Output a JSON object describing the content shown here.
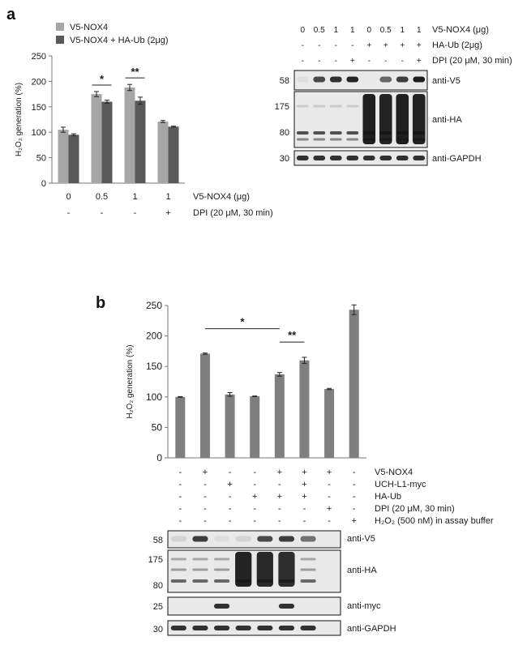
{
  "figure": {
    "panel_a": {
      "label": "a",
      "chart": {
        "legend": [
          "V5-NOX4",
          "V5-NOX4 + HA-Ub (2μg)"
        ],
        "ylabel": "H₂O₂ generation (%)",
        "rows": [
          {
            "label": "V5-NOX4 (μg)",
            "values": [
              "0",
              "0.5",
              "1",
              "1"
            ]
          },
          {
            "label": "DPI (20 μM, 30 min)",
            "values": [
              "-",
              "-",
              "-",
              "+"
            ]
          }
        ],
        "significance": [
          {
            "marker": "*",
            "group": 1
          },
          {
            "marker": "**",
            "group": 2
          }
        ]
      },
      "blot": {
        "rows": [
          {
            "label": "V5-NOX4 (μg)",
            "values": [
              "0",
              "0.5",
              "1",
              "1",
              "0",
              "0.5",
              "1",
              "1"
            ]
          },
          {
            "label": "HA-Ub (2μg)",
            "values": [
              "-",
              "-",
              "-",
              "-",
              "+",
              "+",
              "+",
              "+"
            ]
          },
          {
            "label": "DPI (20 μM, 30 min)",
            "values": [
              "-",
              "-",
              "-",
              "+",
              "-",
              "-",
              "-",
              "+"
            ]
          }
        ],
        "strips": [
          {
            "antibody": "anti-V5",
            "markers": [
              "58"
            ]
          },
          {
            "antibody": "anti-HA",
            "markers": [
              "175",
              "80"
            ]
          },
          {
            "antibody": "anti-GAPDH",
            "markers": [
              "30"
            ]
          }
        ]
      }
    },
    "panel_b": {
      "label": "b",
      "chart": {
        "ylabel": "H₂O₂ generation (%)",
        "significance": [
          {
            "marker": "*",
            "from": 1,
            "to": 4
          },
          {
            "marker": "**",
            "from": 4,
            "to": 5
          }
        ]
      },
      "treatments": [
        {
          "label": "V5-NOX4",
          "values": [
            "-",
            "+",
            "-",
            "-",
            "+",
            "+",
            "+",
            "-"
          ]
        },
        {
          "label": "UCH-L1-myc",
          "values": [
            "-",
            "-",
            "+",
            "-",
            "-",
            "+",
            "-",
            "-"
          ]
        },
        {
          "label": "HA-Ub",
          "values": [
            "-",
            "-",
            "-",
            "+",
            "+",
            "+",
            "-",
            "-"
          ]
        },
        {
          "label": "DPI (20 μM, 30 min)",
          "values": [
            "-",
            "-",
            "-",
            "-",
            "-",
            "-",
            "+",
            "-"
          ]
        },
        {
          "label": "H₂O₂ (500 nM) in assay buffer",
          "values": [
            "-",
            "-",
            "-",
            "-",
            "-",
            "-",
            "-",
            "+"
          ]
        }
      ],
      "blot": {
        "strips": [
          {
            "antibody": "anti-V5",
            "markers": [
              "58"
            ]
          },
          {
            "antibody": "anti-HA",
            "markers": [
              "175",
              "80"
            ]
          },
          {
            "antibody": "anti-myc",
            "markers": [
              "25"
            ]
          },
          {
            "antibody": "anti-GAPDH",
            "markers": [
              "30"
            ]
          }
        ]
      }
    }
  },
  "colors": {
    "bar_light": "#a6a6a6",
    "bar_dark": "#595959",
    "bar_b": "#7f7f7f",
    "text": "#1a1a1a"
  },
  "chart_data": [
    {
      "type": "bar",
      "categories": [
        "0",
        "0.5",
        "1",
        "1"
      ],
      "series": [
        {
          "name": "V5-NOX4",
          "values": [
            105,
            175,
            188,
            121
          ],
          "errors": [
            5,
            5,
            6,
            2
          ]
        },
        {
          "name": "V5-NOX4 + HA-Ub (2μg)",
          "values": [
            95,
            160,
            162,
            111
          ],
          "errors": [
            2,
            3,
            7,
            1
          ]
        }
      ],
      "ylabel": "H₂O₂ generation (%)",
      "ylim": [
        0,
        250
      ],
      "yticks": [
        0,
        50,
        100,
        150,
        200,
        250
      ],
      "legend": "top-left"
    },
    {
      "type": "bar",
      "categories": [
        "",
        "",
        "",
        "",
        "",
        "",
        "",
        ""
      ],
      "values": [
        100,
        171,
        104,
        101,
        137,
        160,
        113,
        243
      ],
      "errors": [
        0.5,
        1,
        3,
        0.5,
        3,
        5,
        1,
        8
      ],
      "ylabel": "H₂O₂ generation (%)",
      "ylim": [
        0,
        250
      ],
      "yticks": [
        0,
        50,
        100,
        150,
        200,
        250
      ]
    }
  ]
}
